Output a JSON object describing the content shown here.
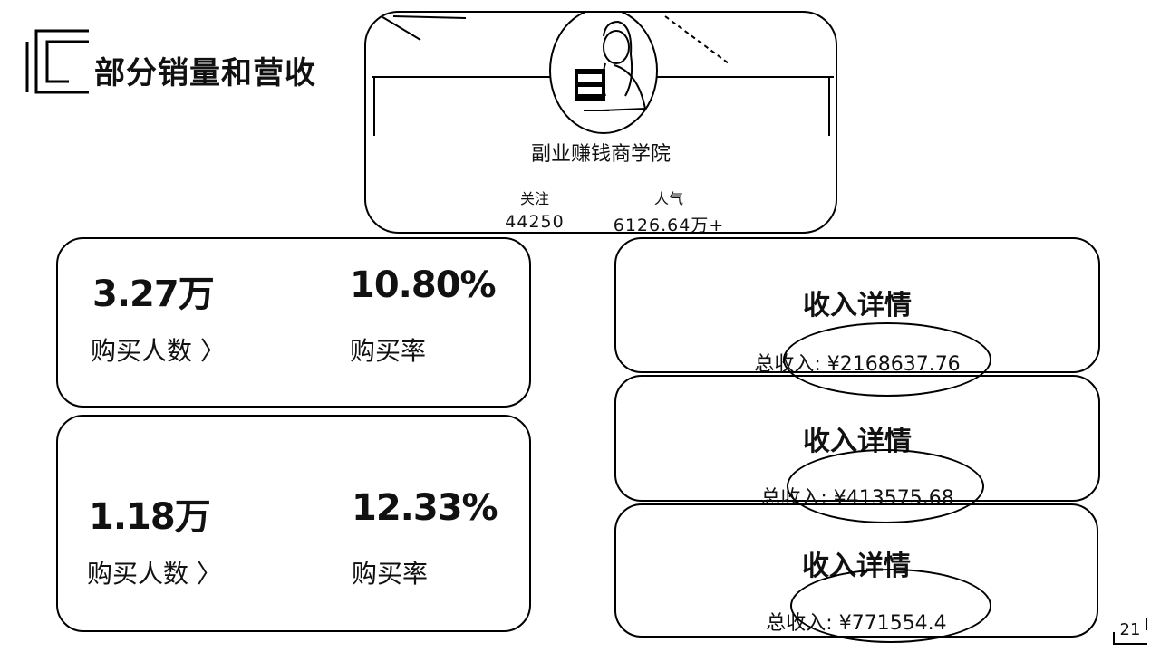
{
  "slide": {
    "title": "部分销量和营收",
    "page_number": "21"
  },
  "profile": {
    "name": "副业赚钱商学院",
    "follow_label": "关注",
    "follow_value": "44250",
    "popularity_label": "人气",
    "popularity_value": "6126.64万+",
    "avatar_icon": "woman-holding-book-avatar"
  },
  "metrics": [
    {
      "buyers_value": "3.27万",
      "buyers_label": "购买人数 〉",
      "rate_value": "10.80%",
      "rate_label": "购买率"
    },
    {
      "buyers_value": "1.18万",
      "buyers_label": "购买人数 〉",
      "rate_value": "12.33%",
      "rate_label": "购买率"
    }
  ],
  "revenue": [
    {
      "title": "收入详情",
      "total": "总收入: ¥2168637.76"
    },
    {
      "title": "收入详情",
      "total": "总收入: ¥413575.68"
    },
    {
      "title": "收入详情",
      "total": "总收入: ¥771554.4"
    }
  ],
  "colors": {
    "ink": "#000000",
    "background": "#ffffff"
  }
}
